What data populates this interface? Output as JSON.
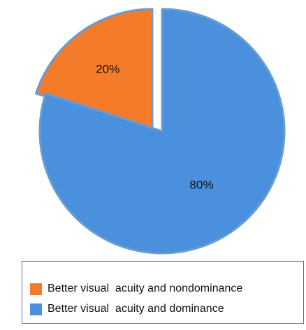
{
  "chart_data": {
    "type": "pie",
    "title": "",
    "slices": [
      {
        "name": "Better visual  acuity and nondominance",
        "value": 20,
        "label": "20%",
        "color": "#F47B2A"
      },
      {
        "name": "Better visual  acuity and dominance",
        "value": 80,
        "label": "80%",
        "color": "#4A90DC"
      }
    ],
    "start": "12 o'clock",
    "direction": "counterclockwise for nondominance slice",
    "legend_position": "bottom",
    "slice_border_color": "#6A9BD1"
  }
}
